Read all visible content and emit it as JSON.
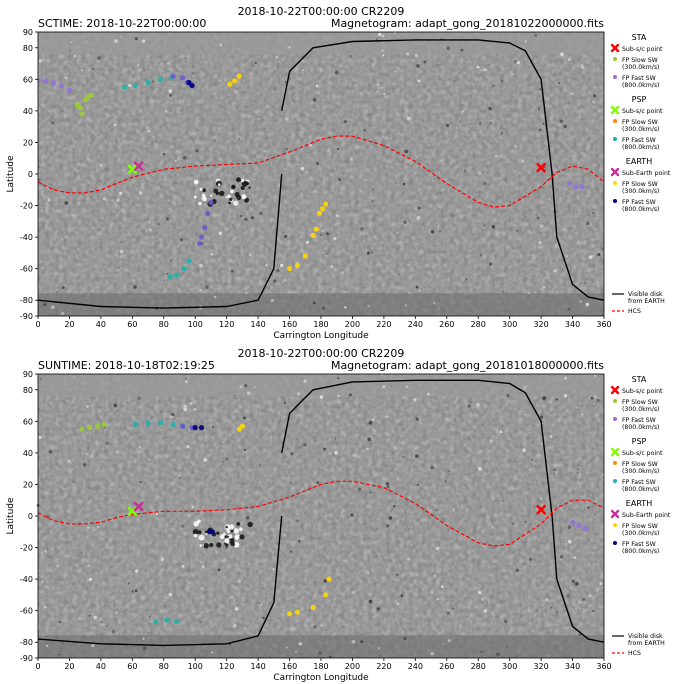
{
  "chart_data": [
    {
      "type": "scatter",
      "title": "2018-10-22T00:00:00 CR2209",
      "time_label": "SCTIME: 2018-10-22T00:00:00",
      "magnetogram_label": "Magnetogram: adapt_gong_20181022000000.fits",
      "xlabel": "Carrington Longitude",
      "ylabel": "Latitude",
      "xlim": [
        0,
        360
      ],
      "ylim": [
        -90,
        90
      ],
      "xticks": [
        0,
        20,
        40,
        60,
        80,
        100,
        120,
        140,
        160,
        180,
        200,
        220,
        240,
        260,
        280,
        300,
        320,
        340,
        360
      ],
      "yticks": [
        90,
        80,
        60,
        40,
        20,
        0,
        -20,
        -40,
        -60,
        -80,
        -90
      ],
      "background": "grayscale magnetogram",
      "hcs": {
        "x": [
          0,
          10,
          20,
          30,
          40,
          50,
          60,
          80,
          100,
          120,
          140,
          160,
          180,
          190,
          200,
          220,
          240,
          260,
          280,
          290,
          300,
          320,
          330,
          340,
          350,
          360
        ],
        "y": [
          -5,
          -10,
          -12,
          -12,
          -10,
          -6,
          -2,
          3,
          5,
          6,
          7,
          14,
          22,
          24,
          24,
          18,
          8,
          -6,
          -18,
          -21,
          -20,
          -8,
          1,
          5,
          3,
          -5
        ]
      },
      "visible_disk": {
        "left": {
          "x": [
            0,
            40,
            80,
            120,
            140,
            150,
            155
          ],
          "y": [
            -80,
            -84,
            -85,
            -84,
            -80,
            -60,
            0
          ]
        },
        "right": {
          "x": [
            155,
            160,
            175,
            200,
            240,
            280,
            300,
            310,
            320,
            327,
            330,
            340,
            350,
            360
          ],
          "y": [
            40,
            65,
            80,
            84,
            85,
            85,
            83,
            78,
            60,
            0,
            -40,
            -70,
            -78,
            -80
          ]
        }
      },
      "sub_points": [
        {
          "name": "STA",
          "x": 320,
          "y": 4,
          "color": "#ff0000",
          "marker": "x"
        },
        {
          "name": "PSP",
          "x": 60,
          "y": 3,
          "color": "#7fff00",
          "marker": "x"
        },
        {
          "name": "EARTH",
          "x": 64,
          "y": 5,
          "color": "#cc2e9a",
          "marker": "x"
        }
      ],
      "footpoints": [
        {
          "color": "#9370db",
          "points": [
            [
              0,
              59
            ],
            [
              5,
              59
            ],
            [
              10,
              58
            ],
            [
              15,
              56
            ],
            [
              20,
              53
            ]
          ]
        },
        {
          "color": "#9acd32",
          "points": [
            [
              25,
              44
            ],
            [
              27,
              42
            ],
            [
              28,
              38
            ],
            [
              30,
              47
            ],
            [
              32,
              49
            ],
            [
              34,
              50
            ]
          ]
        },
        {
          "color": "#20b2aa",
          "points": [
            [
              55,
              55
            ],
            [
              62,
              56
            ],
            [
              70,
              58
            ],
            [
              78,
              60
            ],
            [
              85,
              61
            ]
          ]
        },
        {
          "color": "#6a5acd",
          "points": [
            [
              86,
              62
            ],
            [
              92,
              61
            ],
            [
              95,
              58
            ],
            [
              97,
              57
            ]
          ]
        },
        {
          "color": "#000080",
          "points": [
            [
              96,
              58
            ],
            [
              98,
              56
            ]
          ]
        },
        {
          "color": "#ffd700",
          "points": [
            [
              122,
              57
            ],
            [
              125,
              59
            ],
            [
              128,
              62
            ]
          ]
        },
        {
          "color": "#9370db",
          "points": [
            [
              338,
              -6
            ],
            [
              342,
              -8
            ],
            [
              346,
              -8
            ]
          ]
        },
        {
          "color": "#ffd700",
          "points": [
            [
              183,
              -19
            ],
            [
              181,
              -22
            ],
            [
              179,
              -25
            ],
            [
              177,
              -35
            ],
            [
              175,
              -39
            ],
            [
              170,
              -52
            ],
            [
              165,
              -58
            ],
            [
              160,
              -60
            ]
          ]
        },
        {
          "color": "#6a5acd",
          "points": [
            [
              110,
              -18
            ],
            [
              108,
              -25
            ],
            [
              106,
              -34
            ],
            [
              104,
              -40
            ],
            [
              103,
              -44
            ]
          ]
        },
        {
          "color": "#20b2aa",
          "points": [
            [
              96,
              -55
            ],
            [
              93,
              -60
            ],
            [
              88,
              -64
            ],
            [
              84,
              -65
            ]
          ]
        }
      ],
      "legend": {
        "groups": [
          {
            "title": "STA",
            "items": [
              {
                "label": "Sub-s/c point",
                "color": "#ff0000",
                "marker": "x"
              },
              {
                "label": "FP Slow SW",
                "sub": "(300.0km/s)",
                "color": "#9acd32",
                "marker": "dot"
              },
              {
                "label": "FP Fast SW",
                "sub": "(800.0km/s)",
                "color": "#9370db",
                "marker": "dot"
              }
            ]
          },
          {
            "title": "PSP",
            "items": [
              {
                "label": "Sub-s/c point",
                "color": "#7fff00",
                "marker": "x"
              },
              {
                "label": "FP Slow SW",
                "sub": "(300.0km/s)",
                "color": "#ff8c00",
                "marker": "dot"
              },
              {
                "label": "FP Fast SW",
                "sub": "(800.0km/s)",
                "color": "#20b2aa",
                "marker": "dot"
              }
            ]
          },
          {
            "title": "EARTH",
            "items": [
              {
                "label": "Sub-Earth point",
                "color": "#cc2e9a",
                "marker": "x"
              },
              {
                "label": "FP Slow SW",
                "sub": "(300.0km/s)",
                "color": "#ffd700",
                "marker": "dot"
              },
              {
                "label": "FP Fast SW",
                "sub": "(800.0km/s)",
                "color": "#000080",
                "marker": "dot"
              }
            ]
          }
        ],
        "lines": [
          {
            "label": "Visible disk",
            "sub": "from EARTH",
            "color": "#000000",
            "style": "solid"
          },
          {
            "label": "HCS",
            "color": "#ff0000",
            "style": "dashed"
          }
        ]
      }
    },
    {
      "type": "scatter",
      "title": "2018-10-22T00:00:00 CR2209",
      "time_label": "SUNTIME: 2018-10-18T02:19:25",
      "magnetogram_label": "Magnetogram: adapt_gong_20181018000000.fits",
      "xlabel": "Carrington Longitude",
      "ylabel": "Latitude",
      "xlim": [
        0,
        360
      ],
      "ylim": [
        -90,
        90
      ],
      "xticks": [
        0,
        20,
        40,
        60,
        80,
        100,
        120,
        140,
        160,
        180,
        200,
        220,
        240,
        260,
        280,
        300,
        320,
        340,
        360
      ],
      "yticks": [
        90,
        80,
        60,
        40,
        20,
        0,
        -20,
        -40,
        -60,
        -80,
        -90
      ],
      "background": "grayscale magnetogram",
      "hcs": {
        "x": [
          0,
          10,
          20,
          30,
          40,
          50,
          60,
          80,
          100,
          120,
          140,
          160,
          180,
          190,
          200,
          220,
          240,
          260,
          280,
          290,
          300,
          320,
          330,
          340,
          350,
          360
        ],
        "y": [
          2,
          -3,
          -5,
          -5,
          -4,
          -1,
          1,
          3,
          3,
          4,
          6,
          12,
          20,
          22,
          22,
          18,
          8,
          -6,
          -17,
          -19,
          -18,
          -5,
          5,
          10,
          10,
          5
        ]
      },
      "visible_disk": {
        "left": {
          "x": [
            0,
            40,
            80,
            120,
            140,
            150,
            155
          ],
          "y": [
            -78,
            -81,
            -82,
            -81,
            -76,
            -55,
            0
          ]
        },
        "right": {
          "x": [
            155,
            160,
            175,
            200,
            240,
            280,
            300,
            310,
            320,
            327,
            330,
            340,
            350,
            360
          ],
          "y": [
            40,
            65,
            80,
            85,
            86,
            86,
            84,
            78,
            60,
            0,
            -40,
            -70,
            -78,
            -80
          ]
        }
      },
      "sub_points": [
        {
          "name": "STA",
          "x": 320,
          "y": 4,
          "color": "#ff0000",
          "marker": "x"
        },
        {
          "name": "PSP",
          "x": 60,
          "y": 3,
          "color": "#7fff00",
          "marker": "x"
        },
        {
          "name": "EARTH",
          "x": 64,
          "y": 6,
          "color": "#cc2e9a",
          "marker": "x"
        }
      ],
      "footpoints": [
        {
          "color": "#9acd32",
          "points": [
            [
              28,
              55
            ],
            [
              33,
              56
            ],
            [
              38,
              57
            ],
            [
              42,
              58
            ]
          ]
        },
        {
          "color": "#20b2aa",
          "points": [
            [
              62,
              58
            ],
            [
              70,
              59
            ],
            [
              78,
              59
            ],
            [
              86,
              58
            ],
            [
              92,
              57
            ]
          ]
        },
        {
          "color": "#6a5acd",
          "points": [
            [
              92,
              57
            ],
            [
              98,
              56
            ],
            [
              104,
              56
            ]
          ]
        },
        {
          "color": "#000080",
          "points": [
            [
              100,
              56
            ],
            [
              104,
              56
            ]
          ]
        },
        {
          "color": "#ffd700",
          "points": [
            [
              128,
              55
            ],
            [
              130,
              57
            ]
          ]
        },
        {
          "color": "#9370db",
          "points": [
            [
              340,
              -4
            ],
            [
              344,
              -6
            ],
            [
              348,
              -8
            ]
          ]
        },
        {
          "color": "#000080",
          "points": [
            [
              109,
              -10
            ],
            [
              111,
              -10
            ]
          ]
        },
        {
          "color": "#ffd700",
          "points": [
            [
              185,
              -40
            ],
            [
              183,
              -50
            ],
            [
              175,
              -58
            ],
            [
              165,
              -61
            ],
            [
              160,
              -62
            ]
          ]
        },
        {
          "color": "#20b2aa",
          "points": [
            [
              75,
              -67
            ],
            [
              82,
              -66
            ],
            [
              88,
              -67
            ]
          ]
        }
      ],
      "legend": {
        "groups": [
          {
            "title": "STA",
            "items": [
              {
                "label": "Sub-s/c point",
                "color": "#ff0000",
                "marker": "x"
              },
              {
                "label": "FP Slow SW",
                "sub": "(300.0km/s)",
                "color": "#9acd32",
                "marker": "dot"
              },
              {
                "label": "FP Fast SW",
                "sub": "(800.0km/s)",
                "color": "#9370db",
                "marker": "dot"
              }
            ]
          },
          {
            "title": "PSP",
            "items": [
              {
                "label": "Sub-s/c point",
                "color": "#7fff00",
                "marker": "x"
              },
              {
                "label": "FP Slow SW",
                "sub": "(300.0km/s)",
                "color": "#ff8c00",
                "marker": "dot"
              },
              {
                "label": "FP Fast SW",
                "sub": "(800.0km/s)",
                "color": "#20b2aa",
                "marker": "dot"
              }
            ]
          },
          {
            "title": "EARTH",
            "items": [
              {
                "label": "Sub-Earth point",
                "color": "#cc2e9a",
                "marker": "x"
              },
              {
                "label": "FP Slow SW",
                "sub": "(300.0km/s)",
                "color": "#ffd700",
                "marker": "dot"
              },
              {
                "label": "FP Fast SW",
                "sub": "(800.0km/s)",
                "color": "#000080",
                "marker": "dot"
              }
            ]
          }
        ],
        "lines": [
          {
            "label": "Visible disk",
            "sub": "from EARTH",
            "color": "#000000",
            "style": "solid"
          },
          {
            "label": "HCS",
            "color": "#ff0000",
            "style": "dashed"
          }
        ]
      }
    }
  ]
}
